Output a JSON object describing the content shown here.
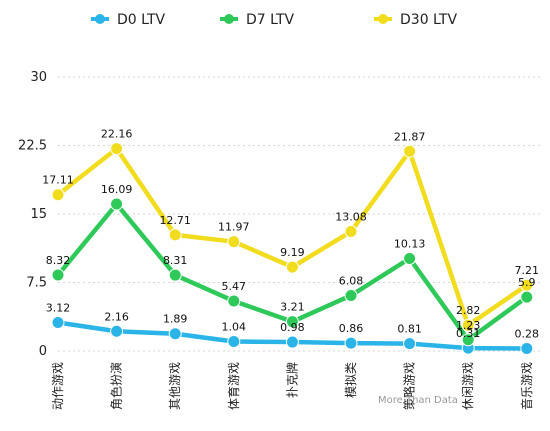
{
  "chart_data": {
    "type": "line",
    "categories": [
      "动作游戏",
      "角色扮演",
      "其他游戏",
      "体育游戏",
      "扑克牌",
      "模拟类",
      "策略游戏",
      "休闲游戏",
      "音乐游戏"
    ],
    "series": [
      {
        "name": "D0 LTV",
        "color": "#2ab4e8",
        "values": [
          3.12,
          2.16,
          1.89,
          1.04,
          0.98,
          0.86,
          0.81,
          0.31,
          0.28
        ]
      },
      {
        "name": "D7 LTV",
        "color": "#2fc95a",
        "values": [
          8.32,
          16.09,
          8.31,
          5.47,
          3.21,
          6.08,
          10.13,
          1.23,
          5.9
        ]
      },
      {
        "name": "D30 LTV",
        "color": "#f2dc1e",
        "values": [
          17.11,
          22.16,
          12.71,
          11.97,
          9.19,
          13.08,
          21.87,
          2.82,
          7.21
        ]
      }
    ],
    "yticks": [
      "0",
      "7.5",
      "15",
      "22.5",
      "30"
    ],
    "ylim": [
      0,
      30
    ],
    "grid": true,
    "legend": "top"
  },
  "watermark": "More Than Data"
}
